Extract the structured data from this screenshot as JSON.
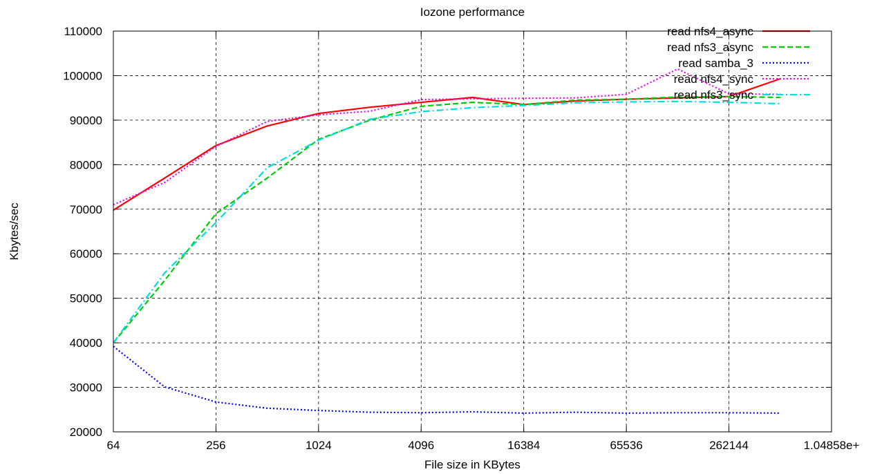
{
  "chart_data": {
    "type": "line",
    "title": "Iozone performance",
    "xlabel": "File size in KBytes",
    "ylabel": "Kbytes/sec",
    "x_scale": "log2",
    "xlim": [
      64,
      1048576
    ],
    "ylim": [
      20000,
      110000
    ],
    "xticks": [
      64,
      256,
      1024,
      4096,
      16384,
      65536,
      262144,
      1048576
    ],
    "xtick_labels": [
      "64",
      "256",
      "1024",
      "4096",
      "16384",
      "65536",
      "262144",
      "1.04858e+"
    ],
    "yticks": [
      20000,
      30000,
      40000,
      50000,
      60000,
      70000,
      80000,
      90000,
      100000,
      110000
    ],
    "ytick_labels": [
      "20000",
      "30000",
      "40000",
      "50000",
      "60000",
      "70000",
      "80000",
      "90000",
      "100000",
      "110000"
    ],
    "grid": true,
    "legend_position": "top-right",
    "x": [
      64,
      128,
      256,
      512,
      1024,
      2048,
      4096,
      8192,
      16384,
      32768,
      65536,
      131072,
      262144,
      524288
    ],
    "series": [
      {
        "name": "read nfs4_async",
        "color": "#ff0000",
        "style": "solid",
        "values": [
          69800,
          77000,
          84300,
          88700,
          91500,
          92900,
          94000,
          95100,
          93500,
          94300,
          94700,
          95000,
          95300,
          99300
        ]
      },
      {
        "name": "read nfs3_async",
        "color": "#00cc00",
        "style": "dashed",
        "values": [
          40000,
          54000,
          69000,
          77000,
          85700,
          90000,
          93100,
          94000,
          93500,
          94500,
          94700,
          95200,
          95300,
          95100
        ]
      },
      {
        "name": "read samba_3",
        "color": "#0000ff",
        "style": "dotted",
        "values": [
          39200,
          30100,
          26700,
          25300,
          24800,
          24400,
          24300,
          24500,
          24200,
          24400,
          24200,
          24300,
          24300,
          24200
        ]
      },
      {
        "name": "read nfs4_sync",
        "color": "#ee00ee",
        "style": "dotted",
        "values": [
          71000,
          76000,
          84100,
          89700,
          91200,
          92000,
          94600,
          94800,
          94900,
          95000,
          95800,
          101500,
          95900,
          95800
        ]
      },
      {
        "name": "read nfs3_sync",
        "color": "#00dddd",
        "style": "dashdot",
        "values": [
          40000,
          55700,
          67000,
          79300,
          85500,
          90200,
          91900,
          92800,
          93300,
          93900,
          94100,
          94200,
          94000,
          93700
        ]
      }
    ]
  }
}
